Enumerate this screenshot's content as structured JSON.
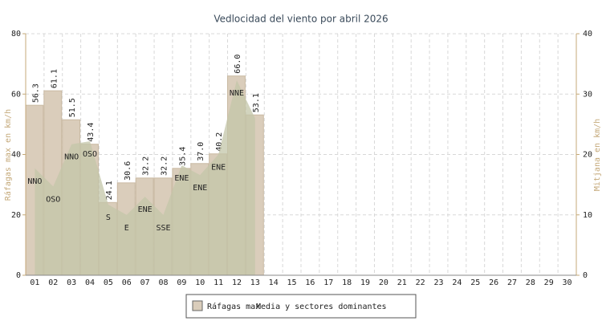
{
  "chart_data": {
    "type": "bar",
    "title": "Vedlocidad del viento por abril 2026",
    "y_label": "Ráfagas max en km/h",
    "y2_label": "Mitjana en km/h",
    "categories": [
      "01",
      "02",
      "03",
      "04",
      "05",
      "06",
      "07",
      "08",
      "09",
      "10",
      "11",
      "12",
      "13",
      "14",
      "15",
      "16",
      "17",
      "18",
      "19",
      "20",
      "21",
      "22",
      "23",
      "24",
      "25",
      "26",
      "27",
      "28",
      "29",
      "30"
    ],
    "series": [
      {
        "name": "Ráfagas max",
        "type": "bar",
        "color": "#dacdbb",
        "values": [
          56.3,
          61.1,
          51.5,
          43.4,
          24.1,
          30.6,
          32.2,
          32.2,
          35.4,
          37.0,
          40.2,
          66.0,
          53.1,
          null,
          null,
          null,
          null,
          null,
          null,
          null,
          null,
          null,
          null,
          null,
          null,
          null,
          null,
          null,
          null,
          null
        ],
        "value_labels": [
          "56.3",
          "61.1",
          "51.5",
          "43.4",
          "24.1",
          "30.6",
          "32.2",
          "32.2",
          "35.4",
          "37.0",
          "40.2",
          "66.0",
          "53.1",
          null,
          null,
          null,
          null,
          null,
          null,
          null,
          null,
          null,
          null,
          null,
          null,
          null,
          null,
          null,
          null,
          null
        ]
      },
      {
        "name": "Media y sectores dominantes",
        "type": "area",
        "axis": "y2",
        "color": "#c3c6a8",
        "values": [
          17.7,
          14.7,
          21.7,
          22.2,
          11.7,
          10,
          13,
          10,
          18.2,
          16.6,
          20,
          32.3,
          26,
          null,
          null,
          null,
          null,
          null,
          null,
          null,
          null,
          null,
          null,
          null,
          null,
          null,
          null,
          null,
          null,
          null
        ],
        "directions": [
          "NNO",
          "OSO",
          "NNO",
          "OSO",
          "S",
          "E",
          "ENE",
          "SSE",
          "ENE",
          "ENE",
          "ENE",
          "NNE",
          null,
          null,
          null,
          null,
          null,
          null,
          null,
          null,
          null,
          null,
          null,
          null,
          null,
          null,
          null,
          null,
          null,
          null
        ]
      }
    ],
    "ylim": [
      0,
      80
    ],
    "yticks": [
      0,
      20,
      40,
      60,
      80
    ],
    "y2lim": [
      0,
      40
    ],
    "y2ticks": [
      0,
      10,
      20,
      30,
      40
    ],
    "grid": true,
    "legend": "bottom"
  }
}
